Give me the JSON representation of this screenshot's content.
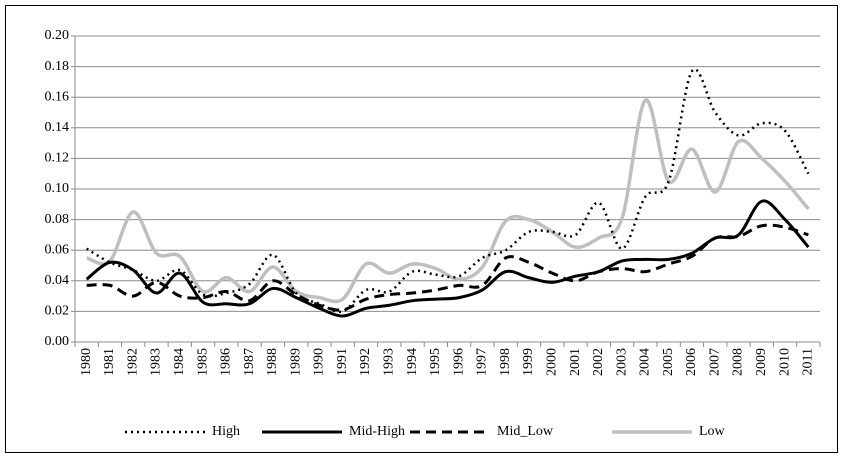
{
  "chart_data": {
    "type": "line",
    "categories": [
      "1980",
      "1981",
      "1982",
      "1983",
      "1984",
      "1985",
      "1986",
      "1987",
      "1988",
      "1989",
      "1990",
      "1991",
      "1992",
      "1993",
      "1994",
      "1995",
      "1996",
      "1997",
      "1998",
      "1999",
      "2000",
      "2001",
      "2002",
      "2003",
      "2004",
      "2005",
      "2006",
      "2007",
      "2008",
      "2009",
      "2010",
      "2011"
    ],
    "series": [
      {
        "name": "High",
        "color": "#000000",
        "dash": "2 4",
        "width": 2.5,
        "values": [
          0.061,
          0.052,
          0.047,
          0.04,
          0.047,
          0.031,
          0.032,
          0.038,
          0.057,
          0.032,
          0.025,
          0.02,
          0.034,
          0.033,
          0.046,
          0.044,
          0.043,
          0.055,
          0.06,
          0.072,
          0.072,
          0.07,
          0.091,
          0.061,
          0.095,
          0.105,
          0.177,
          0.15,
          0.135,
          0.143,
          0.138,
          0.11
        ]
      },
      {
        "name": "Mid-High",
        "color": "#000000",
        "dash": "none",
        "width": 3,
        "values": [
          0.041,
          0.052,
          0.047,
          0.032,
          0.045,
          0.026,
          0.025,
          0.025,
          0.035,
          0.029,
          0.022,
          0.017,
          0.022,
          0.024,
          0.027,
          0.028,
          0.029,
          0.034,
          0.046,
          0.042,
          0.039,
          0.043,
          0.046,
          0.053,
          0.054,
          0.054,
          0.058,
          0.068,
          0.07,
          0.092,
          0.08,
          0.062
        ]
      },
      {
        "name": "Mid_Low",
        "color": "#000000",
        "dash": "10 6",
        "width": 3,
        "values": [
          0.037,
          0.037,
          0.03,
          0.039,
          0.03,
          0.029,
          0.033,
          0.027,
          0.04,
          0.031,
          0.024,
          0.021,
          0.028,
          0.031,
          0.032,
          0.034,
          0.037,
          0.037,
          0.055,
          0.052,
          0.045,
          0.04,
          0.046,
          0.048,
          0.046,
          0.051,
          0.056,
          0.068,
          0.069,
          0.076,
          0.075,
          0.07
        ]
      },
      {
        "name": "Low",
        "color": "#bfbfbf",
        "dash": "none",
        "width": 3.5,
        "values": [
          0.055,
          0.053,
          0.085,
          0.058,
          0.056,
          0.033,
          0.042,
          0.033,
          0.049,
          0.033,
          0.029,
          0.028,
          0.051,
          0.045,
          0.051,
          0.048,
          0.041,
          0.049,
          0.079,
          0.08,
          0.072,
          0.062,
          0.068,
          0.081,
          0.158,
          0.105,
          0.126,
          0.098,
          0.131,
          0.12,
          0.105,
          0.087
        ]
      }
    ],
    "ylim": [
      0,
      0.2
    ],
    "yticks": [
      {
        "value": 0,
        "label": "0.00"
      },
      {
        "value": 0.02,
        "label": "0.02"
      },
      {
        "value": 0.04,
        "label": "0.04"
      },
      {
        "value": 0.06,
        "label": "0.06"
      },
      {
        "value": 0.08,
        "label": "0.08"
      },
      {
        "value": 0.1,
        "label": "0.10"
      },
      {
        "value": 0.12,
        "label": "0.12"
      },
      {
        "value": 0.14,
        "label": "0.14"
      },
      {
        "value": 0.16,
        "label": "0.16"
      },
      {
        "value": 0.18,
        "label": "0.18"
      },
      {
        "value": 0.2,
        "label": "0.20"
      }
    ],
    "grid": true,
    "legend": "bottom",
    "smooth": true
  }
}
